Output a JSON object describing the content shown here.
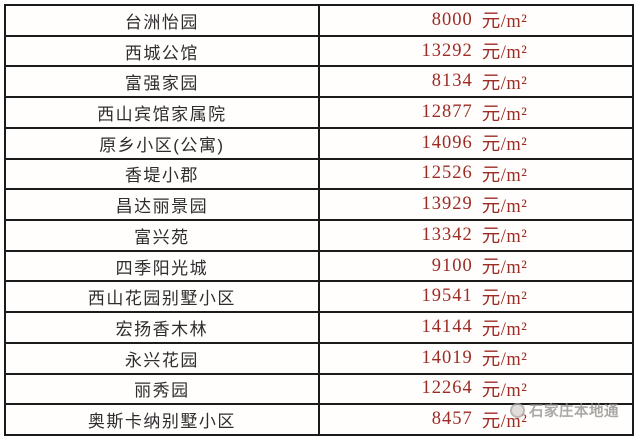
{
  "chart_data": {
    "type": "table",
    "categories": [
      "台洲怡园",
      "西城公馆",
      "富强家园",
      "西山宾馆家属院",
      "原乡小区(公寓)",
      "香堤小郡",
      "昌达丽景园",
      "富兴苑",
      "四季阳光城",
      "西山花园别墅小区",
      "宏扬香木林",
      "永兴花园",
      "丽秀园",
      "奥斯卡纳别墅小区"
    ],
    "values": [
      8000,
      13292,
      8134,
      12877,
      14096,
      12526,
      13929,
      13342,
      9100,
      19541,
      14144,
      14019,
      12264,
      8457
    ],
    "unit": "元/m²",
    "title": "",
    "legend": "none",
    "grid": "full-borders"
  },
  "table": {
    "unit": "元/m²",
    "rows": [
      {
        "name": "台洲怡园",
        "price": "8000"
      },
      {
        "name": "西城公馆",
        "price": "13292"
      },
      {
        "name": "富强家园",
        "price": "8134"
      },
      {
        "name": "西山宾馆家属院",
        "price": "12877"
      },
      {
        "name": "原乡小区(公寓)",
        "price": "14096"
      },
      {
        "name": "香堤小郡",
        "price": "12526"
      },
      {
        "name": "昌达丽景园",
        "price": "13929"
      },
      {
        "name": "富兴苑",
        "price": "13342"
      },
      {
        "name": "四季阳光城",
        "price": "9100"
      },
      {
        "name": "西山花园别墅小区",
        "price": "19541"
      },
      {
        "name": "宏扬香木林",
        "price": "14144"
      },
      {
        "name": "永兴花园",
        "price": "14019"
      },
      {
        "name": "丽秀园",
        "price": "12264"
      },
      {
        "name": "奥斯卡纳别墅小区",
        "price": "8457"
      }
    ]
  },
  "watermark": {
    "text": "石家庄本地通"
  },
  "colors": {
    "price_red": "#9c2b24",
    "name_text": "#2e2c2c",
    "border": "#1b1b1b",
    "watermark_gray": "#94908c"
  }
}
